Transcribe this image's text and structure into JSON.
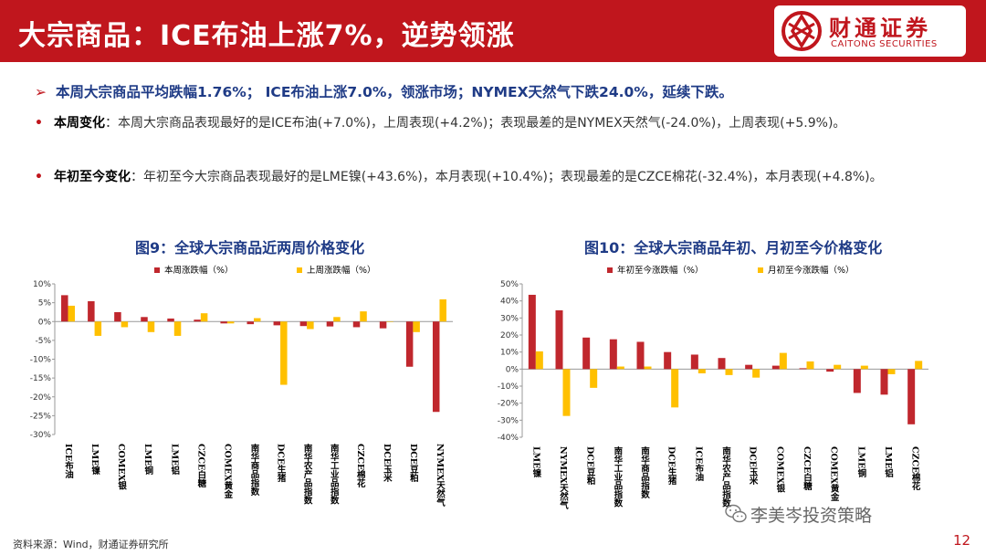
{
  "header": {
    "title": "大宗商品：ICE布油上涨7%，逆势领涨"
  },
  "logo": {
    "cn": "财通证券",
    "en": "CAITONG SECURITIES",
    "color": "#c0161d"
  },
  "summary": {
    "arrow": "➢",
    "text": "本周大宗商品平均跌幅1.76%； ICE布油上涨7.0%，领涨市场；NYMEX天然气下跌24.0%，延续下跌。"
  },
  "bullets": [
    {
      "dot": "•",
      "label": "本周变化",
      "text": "：本周大宗商品表现最好的是ICE布油(+7.0%)，上周表现(+4.2%)；表现最差的是NYMEX天然气(-24.0%)，上周表现(+5.9%)。"
    },
    {
      "dot": "•",
      "label": "年初至今变化",
      "text": "：年初至今大宗商品表现最好的是LME镍(+43.6%)，本月表现(+10.4%)；表现最差的是CZCE棉花(-32.4%)，本月表现(+4.8%)。"
    }
  ],
  "footer": {
    "source": "资料来源：Wind，财通证券研究所",
    "watermark": "李美岑投资策略",
    "page": "12"
  },
  "chart_data": [
    {
      "type": "bar",
      "title": "图9：全球大宗商品近两周价格变化",
      "categories": [
        "ICE布油",
        "LME镍",
        "COMEX银",
        "LME铜",
        "LME铝",
        "CZCE白糖",
        "COMEX黄金",
        "南华商品指数",
        "DCE生猪",
        "南华农产品指数",
        "南华工业品指数",
        "CZCE棉花",
        "DCE玉米",
        "DCE豆粕",
        "NYMEX天然气"
      ],
      "series": [
        {
          "name": "本周涨跌幅（%）",
          "color": "#c0272d",
          "values": [
            7.0,
            5.4,
            2.5,
            1.2,
            0.8,
            0.5,
            -0.5,
            -0.7,
            -1.0,
            -1.2,
            -1.3,
            -1.5,
            -1.8,
            -12.0,
            -24.0
          ]
        },
        {
          "name": "上周涨跌幅（%）",
          "color": "#ffc000",
          "values": [
            4.2,
            -3.8,
            -1.5,
            -2.8,
            -3.8,
            2.2,
            -0.5,
            0.9,
            -16.8,
            -2.0,
            1.2,
            2.7,
            0.0,
            -2.8,
            5.9
          ]
        }
      ],
      "ylim": [
        -30,
        10
      ],
      "yticks": [
        "10%",
        "5%",
        "0%",
        "-5%",
        "-10%",
        "-15%",
        "-20%",
        "-25%",
        "-30%"
      ],
      "legend": "top"
    },
    {
      "type": "bar",
      "title": "图10：全球大宗商品年初、月初至今价格变化",
      "categories": [
        "LME镍",
        "NYMEX天然气",
        "DCE豆粕",
        "南华工业品指数",
        "南华商品指数",
        "DCE生猪",
        "ICE布油",
        "南华农产品指数",
        "DCE玉米",
        "COMEX银",
        "CZCE白糖",
        "COMEX黄金",
        "LME铜",
        "LME铝",
        "CZCE棉花"
      ],
      "series": [
        {
          "name": "年初至今涨跌幅（%）",
          "color": "#c0272d",
          "values": [
            43.6,
            34.5,
            18.5,
            17.5,
            16.0,
            10.0,
            8.5,
            6.5,
            2.5,
            2.0,
            0.5,
            -1.5,
            -14.0,
            -15.0,
            -32.4
          ]
        },
        {
          "name": "月初至今涨跌幅（%）",
          "color": "#ffc000",
          "values": [
            10.4,
            -27.5,
            -11.0,
            1.5,
            1.5,
            -22.5,
            -2.5,
            -3.5,
            -5.0,
            9.5,
            4.5,
            2.5,
            2.0,
            -3.0,
            4.8
          ]
        }
      ],
      "ylim": [
        -40,
        50
      ],
      "yticks": [
        "50%",
        "40%",
        "30%",
        "20%",
        "10%",
        "0%",
        "-10%",
        "-20%",
        "-30%",
        "-40%"
      ],
      "legend": "top"
    }
  ]
}
